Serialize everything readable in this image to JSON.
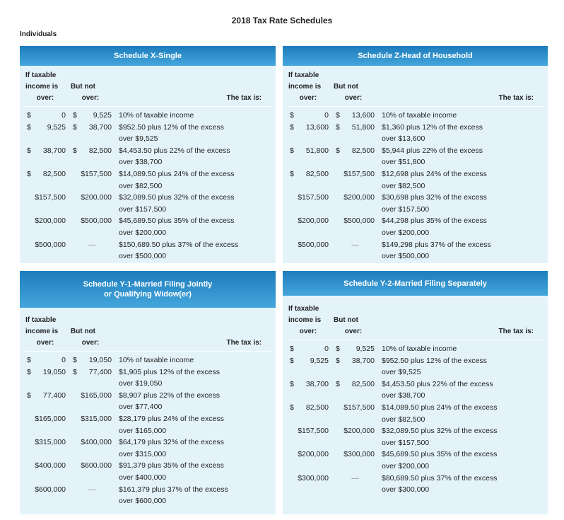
{
  "title": "2018 Tax Rate Schedules",
  "subtitle": "Individuals",
  "schedules": [
    {
      "title": [
        "Schedule X-Single"
      ],
      "header": [
        [
          "If taxable",
          "income is",
          "over:"
        ],
        [
          "But not",
          "over:"
        ],
        [
          "The tax is:"
        ]
      ],
      "rows": [
        {
          "over": "$ 0",
          "not_over": "$ 9,525",
          "tax": [
            "10% of taxable income"
          ]
        },
        {
          "over": "$ 9,525",
          "not_over": "$ 38,700",
          "tax": [
            "$952.50 plus 12% of the excess",
            "over $9,525"
          ]
        },
        {
          "over": "$ 38,700",
          "not_over": "$ 82,500",
          "tax": [
            "$4,453.50 plus 22% of the excess",
            "over $38,700"
          ]
        },
        {
          "over": "$ 82,500",
          "not_over": "$157,500",
          "tax": [
            "$14,089.50 plus 24% of the excess",
            "over $82,500"
          ]
        },
        {
          "over": "$157,500",
          "not_over": "$200,000",
          "tax": [
            "$32,089.50 plus 32% of the excess",
            "over $157,500"
          ]
        },
        {
          "over": "$200,000",
          "not_over": "$500,000",
          "tax": [
            "$45,689.50 plus 35% of the excess",
            "over $200,000"
          ]
        },
        {
          "over": "$500,000",
          "not_over": "—",
          "tax": [
            "$150,689.50 plus 37% of the excess",
            "over $500,000"
          ]
        }
      ]
    },
    {
      "title": [
        "Schedule Z-Head of Household"
      ],
      "header": [
        [
          "If taxable",
          "income is",
          "over:"
        ],
        [
          "But not",
          "over:"
        ],
        [
          "The tax is:"
        ]
      ],
      "rows": [
        {
          "over": "$ 0",
          "not_over": "$ 13,600",
          "tax": [
            "10% of taxable income"
          ]
        },
        {
          "over": "$ 13,600",
          "not_over": "$ 51,800",
          "tax": [
            "$1,360 plus 12% of the excess",
            "over $13,600"
          ]
        },
        {
          "over": "$ 51,800",
          "not_over": "$ 82,500",
          "tax": [
            "$5,944 plus 22% of the excess",
            "over $51,800"
          ]
        },
        {
          "over": "$ 82,500",
          "not_over": "$157,500",
          "tax": [
            "$12,698 plus 24% of the excess",
            "over $82,500"
          ]
        },
        {
          "over": "$157,500",
          "not_over": "$200,000",
          "tax": [
            "$30,698 plus 32% of the excess",
            "over $157,500"
          ]
        },
        {
          "over": "$200,000",
          "not_over": "$500,000",
          "tax": [
            "$44,298 plus 35% of the excess",
            "over $200,000"
          ]
        },
        {
          "over": "$500,000",
          "not_over": "—",
          "tax": [
            "$149,298 plus 37% of the excess",
            "over $500,000"
          ]
        }
      ]
    },
    {
      "title": [
        "Schedule Y-1-Married Filing Jointly",
        "or Qualifying Widow(er)"
      ],
      "header": [
        [
          "If taxable",
          "income is",
          "over:"
        ],
        [
          "But not",
          "over:"
        ],
        [
          "The tax is:"
        ]
      ],
      "rows": [
        {
          "over": "$ 0",
          "not_over": "$ 19,050",
          "tax": [
            "10% of taxable income"
          ]
        },
        {
          "over": "$ 19,050",
          "not_over": "$ 77,400",
          "tax": [
            "$1,905 plus 12% of the excess",
            "over $19,050"
          ]
        },
        {
          "over": "$ 77,400",
          "not_over": "$165,000",
          "tax": [
            "$8,907 plus 22% of the excess",
            "over $77,400"
          ]
        },
        {
          "over": "$165,000",
          "not_over": "$315,000",
          "tax": [
            "$28,179 plus 24% of the excess",
            "over $165,000"
          ]
        },
        {
          "over": "$315,000",
          "not_over": "$400,000",
          "tax": [
            "$64,179 plus 32% of the excess",
            "over $315,000"
          ]
        },
        {
          "over": "$400,000",
          "not_over": "$600,000",
          "tax": [
            "$91,379 plus 35% of the excess",
            "over $400,000"
          ]
        },
        {
          "over": "$600,000",
          "not_over": "—",
          "tax": [
            "$161,379 plus 37% of the excess",
            "over $600,000"
          ]
        }
      ]
    },
    {
      "title": [
        "Schedule Y-2-Married Filing Separately"
      ],
      "header": [
        [
          "If taxable",
          "income is",
          "over:"
        ],
        [
          "But not",
          "over:"
        ],
        [
          "The tax is:"
        ]
      ],
      "rows": [
        {
          "over": "$ 0",
          "not_over": "$ 9,525",
          "tax": [
            "10% of taxable income"
          ]
        },
        {
          "over": "$ 9,525",
          "not_over": "$ 38,700",
          "tax": [
            "$952.50 plus 12% of the excess",
            "over $9,525"
          ]
        },
        {
          "over": "$ 38,700",
          "not_over": "$ 82,500",
          "tax": [
            "$4,453.50 plus 22% of the excess",
            "over $38,700"
          ]
        },
        {
          "over": "$ 82,500",
          "not_over": "$157,500",
          "tax": [
            "$14,089.50 plus 24% of the excess",
            "over $82,500"
          ]
        },
        {
          "over": "$157,500",
          "not_over": "$200,000",
          "tax": [
            "$32,089.50 plus 32% of the excess",
            "over $157,500"
          ]
        },
        {
          "over": "$200,000",
          "not_over": "$300,000",
          "tax": [
            "$45,689.50 plus 35% of the excess",
            "over $200,000"
          ]
        },
        {
          "over": "$300,000",
          "not_over": "—",
          "tax": [
            "$80,689.50 plus 37% of the excess",
            "over $300,000"
          ]
        }
      ]
    }
  ]
}
